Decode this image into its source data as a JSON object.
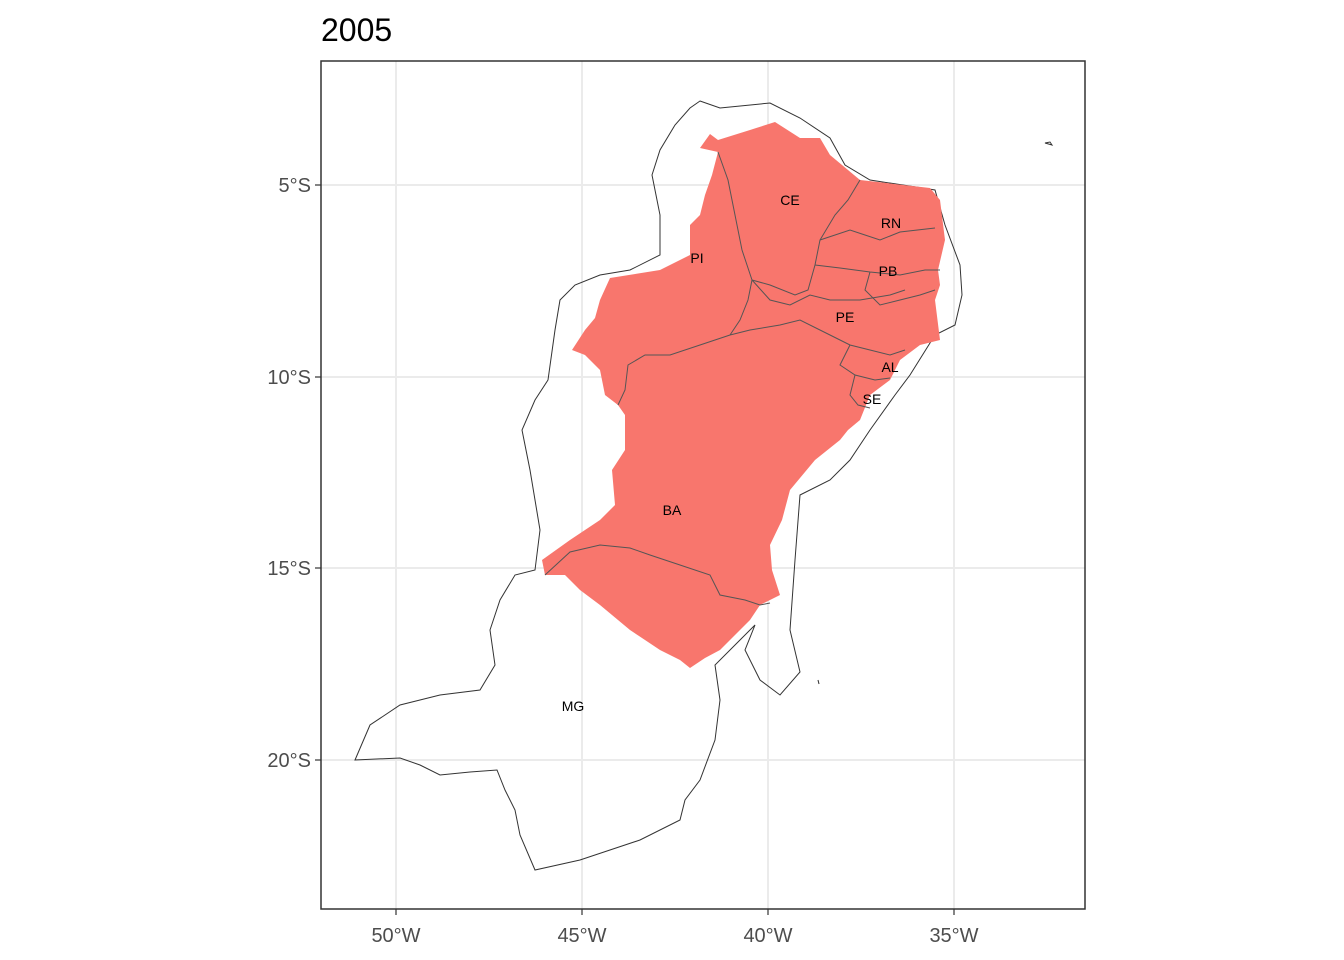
{
  "title": "2005",
  "axes": {
    "x_ticks": [
      "50°W",
      "45°W",
      "40°W",
      "35°W"
    ],
    "y_ticks": [
      "5°S",
      "10°S",
      "15°S",
      "20°S"
    ],
    "grid": true
  },
  "colors": {
    "fill": "#f8766d",
    "border": "#333333",
    "grid": "#ebebeb",
    "background": "#ffffff"
  },
  "states": [
    {
      "abbr": "CE",
      "highlighted": true
    },
    {
      "abbr": "RN",
      "highlighted": true
    },
    {
      "abbr": "PI",
      "highlighted": true
    },
    {
      "abbr": "PB",
      "highlighted": true
    },
    {
      "abbr": "PE",
      "highlighted": true
    },
    {
      "abbr": "AL",
      "highlighted": true
    },
    {
      "abbr": "SE",
      "highlighted": true
    },
    {
      "abbr": "BA",
      "highlighted": true
    },
    {
      "abbr": "MG",
      "highlighted": false
    }
  ]
}
